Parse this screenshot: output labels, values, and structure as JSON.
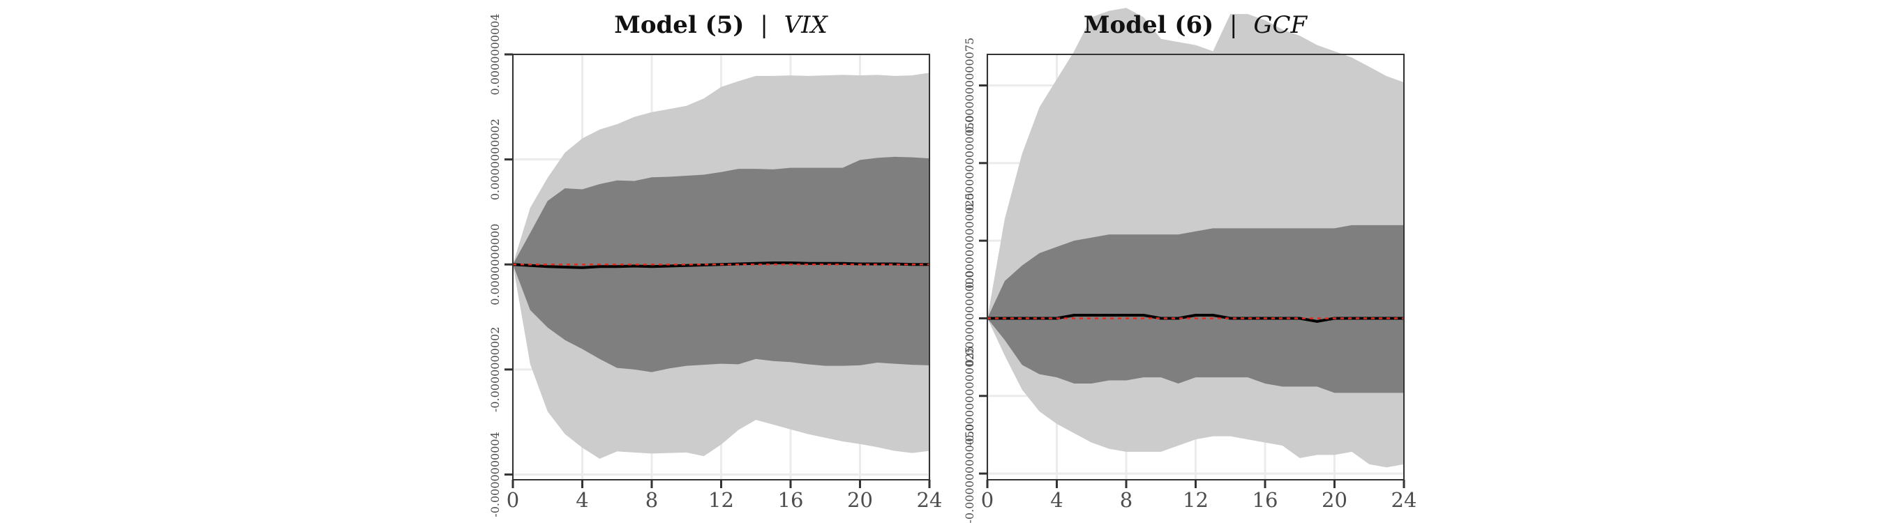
{
  "chart_data": [
    {
      "type": "area",
      "title": "Model (5)",
      "separator": "|",
      "title_variable": "VIX",
      "xlabel": "",
      "ylabel": "",
      "xlim": [
        0,
        24
      ],
      "ylim": [
        -4.1e-10,
        4e-10
      ],
      "x_ticks": [
        0,
        4,
        8,
        12,
        16,
        20,
        24
      ],
      "x_tick_labels": [
        "0",
        "4",
        "8",
        "12",
        "16",
        "20",
        "24"
      ],
      "y_ticks": [
        -4e-10,
        -2e-10,
        0,
        2e-10,
        4e-10
      ],
      "y_tick_labels": [
        "-0.0000000004",
        "-0.0000000002",
        "0.0000000000",
        "0.0000000002",
        "0.0000000004"
      ],
      "grid": true,
      "x": [
        0,
        1,
        2,
        3,
        4,
        5,
        6,
        7,
        8,
        9,
        10,
        11,
        12,
        13,
        14,
        15,
        16,
        17,
        18,
        19,
        20,
        21,
        22,
        23,
        24
      ],
      "series": [
        {
          "role": "outer-band-upper",
          "color": "#cccccc",
          "values": [
            0,
            1.08e-10,
            1.65e-10,
            2.13e-10,
            2.4e-10,
            2.57e-10,
            2.67e-10,
            2.81e-10,
            2.9e-10,
            2.96e-10,
            3.02e-10,
            3.16e-10,
            3.38e-10,
            3.49e-10,
            3.59e-10,
            3.59e-10,
            3.6e-10,
            3.59e-10,
            3.6e-10,
            3.61e-10,
            3.6e-10,
            3.61e-10,
            3.59e-10,
            3.6e-10,
            3.65e-10
          ]
        },
        {
          "role": "outer-band-lower",
          "color": "#cccccc",
          "values": [
            0,
            -1.9e-10,
            -2.8e-10,
            -3.23e-10,
            -3.49e-10,
            -3.7e-10,
            -3.56e-10,
            -3.58e-10,
            -3.6e-10,
            -3.59e-10,
            -3.58e-10,
            -3.65e-10,
            -3.43e-10,
            -3.15e-10,
            -2.96e-10,
            -3.05e-10,
            -3.14e-10,
            -3.23e-10,
            -3.3e-10,
            -3.37e-10,
            -3.42e-10,
            -3.48e-10,
            -3.55e-10,
            -3.59e-10,
            -3.55e-10
          ]
        },
        {
          "role": "inner-band-upper",
          "color": "#7f7f7f",
          "values": [
            0,
            6e-11,
            1.21e-10,
            1.45e-10,
            1.43e-10,
            1.53e-10,
            1.6e-10,
            1.59e-10,
            1.66e-10,
            1.67e-10,
            1.69e-10,
            1.71e-10,
            1.76e-10,
            1.82e-10,
            1.82e-10,
            1.81e-10,
            1.84e-10,
            1.84e-10,
            1.84e-10,
            1.84e-10,
            1.99e-10,
            2.03e-10,
            2.05e-10,
            2.04e-10,
            2.02e-10
          ]
        },
        {
          "role": "inner-band-lower",
          "color": "#7f7f7f",
          "values": [
            0,
            -8.7e-11,
            -1.2e-10,
            -1.44e-10,
            -1.61e-10,
            -1.8e-10,
            -1.97e-10,
            -2e-10,
            -2.05e-10,
            -1.98e-10,
            -1.93e-10,
            -1.91e-10,
            -1.89e-10,
            -1.9e-10,
            -1.8e-10,
            -1.84e-10,
            -1.86e-10,
            -1.9e-10,
            -1.93e-10,
            -1.93e-10,
            -1.92e-10,
            -1.87e-10,
            -1.89e-10,
            -1.91e-10,
            -1.92e-10
          ]
        },
        {
          "role": "median",
          "color": "#000000",
          "style": "solid",
          "values": [
            0,
            -2e-12,
            -4e-12,
            -5e-12,
            -6e-12,
            -4e-12,
            -4e-12,
            -3e-12,
            -4e-12,
            -3e-12,
            -2e-12,
            -1e-12,
            0,
            1e-12,
            2e-12,
            3e-12,
            3e-12,
            2e-12,
            2e-12,
            2e-12,
            1e-12,
            1e-12,
            1e-12,
            0,
            0
          ]
        },
        {
          "role": "zero-line",
          "color": "#e8291c",
          "style": "dashed",
          "values": [
            0,
            0,
            0,
            0,
            0,
            0,
            0,
            0,
            0,
            0,
            0,
            0,
            0,
            0,
            0,
            0,
            0,
            0,
            0,
            0,
            0,
            0,
            0,
            0,
            0
          ]
        }
      ]
    },
    {
      "type": "area",
      "title": "Model (6)",
      "separator": "|",
      "title_variable": "GCF",
      "xlabel": "",
      "ylabel": "",
      "xlim": [
        0,
        24
      ],
      "ylim": [
        -5.2e-11,
        8.5e-11
      ],
      "x_ticks": [
        0,
        4,
        8,
        12,
        16,
        20,
        24
      ],
      "x_tick_labels": [
        "0",
        "4",
        "8",
        "12",
        "16",
        "20",
        "24"
      ],
      "y_ticks": [
        -5e-11,
        -2.5e-11,
        0,
        2.5e-11,
        5e-11,
        7.5e-11
      ],
      "y_tick_labels": [
        "-0.000000000050",
        "-0.000000000025",
        "0.000000000000",
        "0.000000000025",
        "0.000000000050",
        "0.000000000075"
      ],
      "grid": true,
      "x": [
        0,
        1,
        2,
        3,
        4,
        5,
        6,
        7,
        8,
        9,
        10,
        11,
        12,
        13,
        14,
        15,
        16,
        17,
        18,
        19,
        20,
        21,
        22,
        23,
        24
      ],
      "series": [
        {
          "role": "outer-band-upper",
          "color": "#cccccc",
          "values": [
            0,
            3.2e-11,
            5.3e-11,
            6.8e-11,
            7.7e-11,
            8.6e-11,
            9.7e-11,
            9.9e-11,
            1e-10,
            9.7e-11,
            9e-11,
            8.9e-11,
            8.8e-11,
            8.6e-11,
            9.8e-11,
            9.8e-11,
            9.6e-11,
            9.3e-11,
            9.1e-11,
            8.8e-11,
            8.6e-11,
            8.4e-11,
            8.1e-11,
            7.8e-11,
            7.6e-11
          ]
        },
        {
          "role": "outer-band-lower",
          "color": "#cccccc",
          "values": [
            0,
            -1.2e-11,
            -2.3e-11,
            -3e-11,
            -3.4e-11,
            -3.7e-11,
            -4e-11,
            -4.2e-11,
            -4.3e-11,
            -4.3e-11,
            -4.3e-11,
            -4.1e-11,
            -3.9e-11,
            -3.8e-11,
            -3.8e-11,
            -3.9e-11,
            -4e-11,
            -4.1e-11,
            -4.5e-11,
            -4.4e-11,
            -4.4e-11,
            -4.3e-11,
            -4.7e-11,
            -4.8e-11,
            -4.7e-11
          ]
        },
        {
          "role": "inner-band-upper",
          "color": "#7f7f7f",
          "values": [
            0,
            1.2e-11,
            1.7e-11,
            2.1e-11,
            2.3e-11,
            2.5e-11,
            2.6e-11,
            2.7e-11,
            2.7e-11,
            2.7e-11,
            2.7e-11,
            2.7e-11,
            2.8e-11,
            2.9e-11,
            2.9e-11,
            2.9e-11,
            2.9e-11,
            2.9e-11,
            2.9e-11,
            2.9e-11,
            2.9e-11,
            3e-11,
            3e-11,
            3e-11,
            3e-11
          ]
        },
        {
          "role": "inner-band-lower",
          "color": "#7f7f7f",
          "values": [
            0,
            -7e-12,
            -1.5e-11,
            -1.8e-11,
            -1.9e-11,
            -2.1e-11,
            -2.1e-11,
            -2e-11,
            -2e-11,
            -1.9e-11,
            -1.9e-11,
            -2.1e-11,
            -1.9e-11,
            -1.9e-11,
            -1.9e-11,
            -1.9e-11,
            -2.1e-11,
            -2.2e-11,
            -2.2e-11,
            -2.2e-11,
            -2.4e-11,
            -2.4e-11,
            -2.4e-11,
            -2.4e-11,
            -2.4e-11
          ]
        },
        {
          "role": "median",
          "color": "#000000",
          "style": "solid",
          "values": [
            0,
            0,
            0,
            0,
            0,
            1e-12,
            1e-12,
            1e-12,
            1e-12,
            1e-12,
            0,
            0,
            1e-12,
            1e-12,
            0,
            0,
            0,
            0,
            0,
            -1e-12,
            0,
            0,
            0,
            0,
            0
          ]
        },
        {
          "role": "zero-line",
          "color": "#e8291c",
          "style": "dashed",
          "values": [
            0,
            0,
            0,
            0,
            0,
            0,
            0,
            0,
            0,
            0,
            0,
            0,
            0,
            0,
            0,
            0,
            0,
            0,
            0,
            0,
            0,
            0,
            0,
            0,
            0
          ]
        }
      ]
    }
  ]
}
